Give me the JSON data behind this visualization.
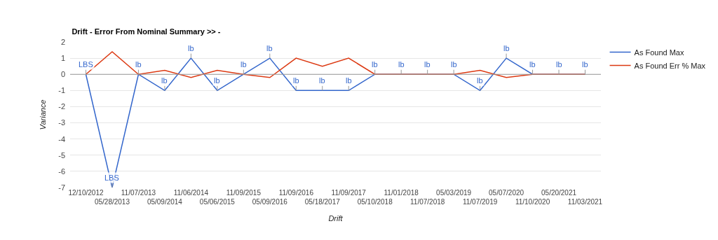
{
  "chart_data": {
    "type": "line",
    "title": "Drift - Error From Nominal Summary >> -",
    "xlabel": "Drift",
    "ylabel": "Variance",
    "categories": [
      "12/10/2012",
      "05/28/2013",
      "11/07/2013",
      "05/09/2014",
      "11/06/2014",
      "05/06/2015",
      "11/09/2015",
      "05/09/2016",
      "11/09/2016",
      "05/18/2017",
      "11/09/2017",
      "05/10/2018",
      "11/01/2018",
      "11/07/2018",
      "05/03/2019",
      "11/07/2019",
      "05/07/2020",
      "11/10/2020",
      "05/20/2021",
      "11/03/2021"
    ],
    "series": [
      {
        "name": "As Found Max",
        "color": "#3366cc",
        "values": [
          0,
          -7,
          0,
          -1,
          1,
          -1,
          0,
          1,
          -1,
          -1,
          -1,
          0,
          0,
          0,
          0,
          -1,
          1,
          0,
          0,
          0
        ],
        "value_labels": [
          "LBS",
          "LBS",
          "lb",
          "lb",
          "lb",
          "lb",
          "lb",
          "lb",
          "lb",
          "lb",
          "lb",
          "lb",
          "lb",
          "lb",
          "lb",
          "lb",
          "lb",
          "lb",
          "lb",
          "lb"
        ]
      },
      {
        "name": "As Found Err % Max",
        "color": "#dc3912",
        "values": [
          0,
          1.4,
          0,
          0.25,
          -0.2,
          0.25,
          0,
          -0.2,
          1,
          0.5,
          1,
          0,
          0,
          0,
          0,
          0.25,
          -0.2,
          0,
          0,
          0
        ]
      }
    ],
    "ylim": [
      -7,
      2
    ],
    "yticks": [
      -7,
      -6,
      -5,
      -4,
      -3,
      -2,
      -1,
      0,
      1,
      2
    ],
    "ref_lines": [
      {
        "axis": "y",
        "value": 0,
        "color": "#999999"
      }
    ],
    "grid": "y",
    "legend": "top right",
    "marker": "none",
    "line_style": "solid"
  }
}
